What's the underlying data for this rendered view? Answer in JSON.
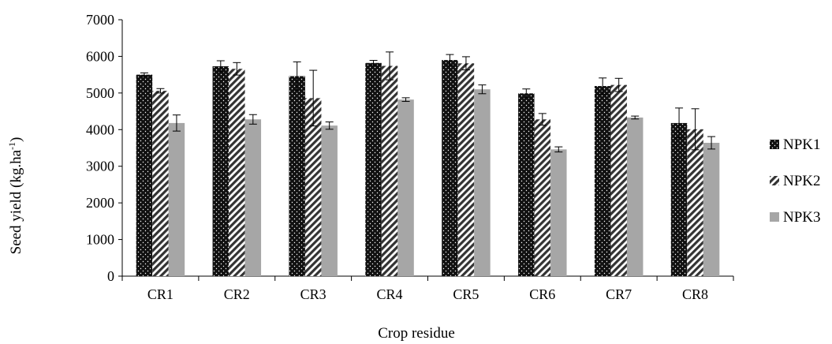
{
  "chart_data": {
    "type": "bar",
    "xlabel": "Crop residue",
    "ylabel": "Seed yield (kg.ha",
    "ylabel_superscript": "-1",
    "ylabel_suffix": ")",
    "ylim": [
      0,
      7000
    ],
    "yticks": [
      "0",
      "1000",
      "2000",
      "3000",
      "4000",
      "5000",
      "6000",
      "7000"
    ],
    "grid": false,
    "legend_position": "right",
    "categories": [
      "CR1",
      "CR2",
      "CR3",
      "CR4",
      "CR5",
      "CR6",
      "CR7",
      "CR8"
    ],
    "series": [
      {
        "name": "NPK1",
        "pattern": "dots",
        "color": "#111111",
        "values": [
          5500,
          5730,
          5460,
          5820,
          5900,
          4990,
          5190,
          4180
        ],
        "errors": [
          50,
          150,
          390,
          70,
          150,
          120,
          220,
          410
        ]
      },
      {
        "name": "NPK2",
        "pattern": "diagonal",
        "color": "#333333",
        "values": [
          5060,
          5660,
          4860,
          5740,
          5810,
          4280,
          5220,
          4010
        ],
        "errors": [
          60,
          170,
          760,
          380,
          180,
          160,
          180,
          560
        ]
      },
      {
        "name": "NPK3",
        "pattern": "solid",
        "color": "#a6a6a6",
        "values": [
          4180,
          4280,
          4110,
          4820,
          5100,
          3460,
          4330,
          3640
        ],
        "errors": [
          220,
          130,
          100,
          50,
          120,
          70,
          40,
          170
        ]
      }
    ]
  }
}
